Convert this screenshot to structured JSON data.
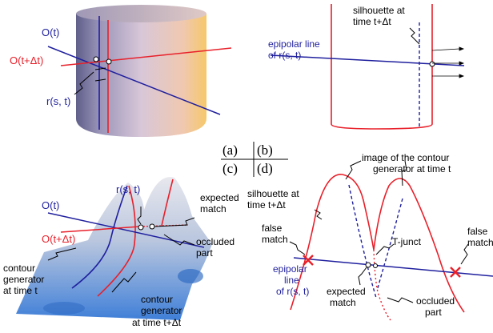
{
  "colors": {
    "blue": "#1f1f9e",
    "red": "#e8202a",
    "surface_top": "#c9c9d9",
    "surface_bottom": "#4f86d6"
  },
  "panel_a": {
    "O_t": "O(t)",
    "O_t_dt": "O(t+Δt)",
    "r": "r(s, t)"
  },
  "panel_b": {
    "silhouette_1": "silhouette at",
    "silhouette_2": "time t+Δt",
    "epipolar_1": "epipolar line",
    "epipolar_2": "of r(s, t)"
  },
  "center_legend": {
    "a": "(a)",
    "b": "(b)",
    "c": "(c)",
    "d": "(d)"
  },
  "panel_c": {
    "O_t": "O(t)",
    "O_t_dt": "O(t+Δt)",
    "r": "r(s, t)",
    "expected_1": "expected",
    "expected_2": "match",
    "occluded_1": "occluded",
    "occluded_2": "part",
    "contour_gen_1": "contour",
    "contour_gen_2": "generator",
    "contour_gen_3": "at time t",
    "contour_gen_dt_1": "contour",
    "contour_gen_dt_2": "generator",
    "contour_gen_dt_3": "at time t+Δt"
  },
  "panel_d": {
    "image_contour_1": "image of the contour",
    "image_contour_2": "generator at time t",
    "silhouette_1": "silhouette at",
    "silhouette_2": "time t+Δt",
    "false_left_1": "false",
    "false_left_2": "match",
    "tjunct": "T-junct",
    "false_right_1": "false",
    "false_right_2": "match",
    "epipolar_1": "epipolar",
    "epipolar_2": "line",
    "epipolar_3": "of r(s, t)",
    "expected_1": "expected",
    "expected_2": "match",
    "occluded_1": "occluded",
    "occluded_2": "part"
  }
}
